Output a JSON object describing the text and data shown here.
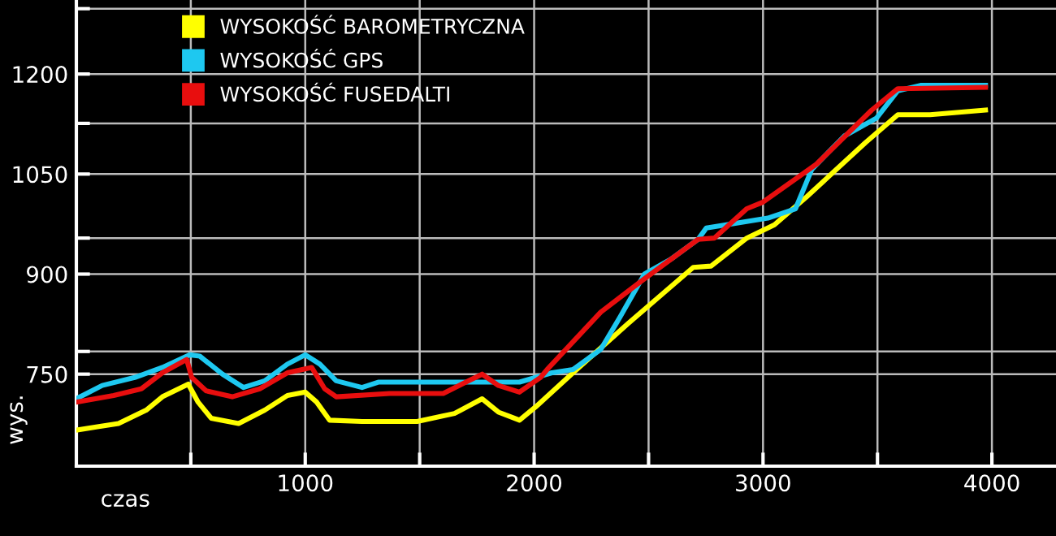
{
  "chart_data": {
    "type": "line",
    "xlabel": "czas",
    "ylabel": "wys.",
    "xlim": [
      0,
      4280
    ],
    "ylim": [
      612,
      1311
    ],
    "xticks": [
      {
        "value": 500,
        "label": null
      },
      1000,
      {
        "value": 1500,
        "label": null
      },
      2000,
      {
        "value": 2500,
        "label": null
      },
      3000,
      {
        "value": 3500,
        "label": null
      },
      4000
    ],
    "yticks": [
      750,
      {
        "value": 784,
        "label": null
      },
      900,
      {
        "value": 954,
        "label": null
      },
      1050,
      {
        "value": 1126,
        "label": null
      },
      1200,
      {
        "value": 1298,
        "label": null
      }
    ],
    "grid": true,
    "legend": "top left",
    "marker": "none",
    "line_style": "solid",
    "series": [
      {
        "name": "WYSOKOŚĆ BAROMETRYCZNA",
        "color": "#ffff00",
        "x": [
          0,
          92,
          184,
          305,
          376,
          447,
          489,
          532,
          589,
          709,
          823,
          922,
          1000,
          1050,
          1106,
          1248,
          1489,
          1652,
          1773,
          1844,
          1936,
          2007,
          2170,
          2411,
          2695,
          2773,
          2929,
          3050,
          3191,
          3447,
          3589,
          3730,
          3972
        ],
        "values": [
          666,
          671,
          676,
          696,
          716,
          728,
          735,
          708,
          684,
          676,
          696,
          718,
          723,
          708,
          681,
          679,
          679,
          691,
          713,
          693,
          681,
          701,
          752,
          826,
          910,
          912,
          954,
          974,
          1016,
          1097,
          1139,
          1139,
          1146
        ]
      },
      {
        "name": "WYSOKOŚĆ GPS",
        "color": "#1ec8f0",
        "x": [
          0,
          113,
          255,
          376,
          496,
          539,
          638,
          730,
          823,
          922,
          1000,
          1064,
          1135,
          1248,
          1319,
          1369,
          1603,
          1936,
          2078,
          2170,
          2291,
          2376,
          2482,
          2596,
          2716,
          2752,
          2879,
          3021,
          3142,
          3213,
          3355,
          3496,
          3589,
          3688,
          3972
        ],
        "values": [
          713,
          733,
          745,
          760,
          779,
          777,
          750,
          730,
          740,
          765,
          779,
          765,
          740,
          730,
          738,
          738,
          738,
          738,
          752,
          757,
          787,
          836,
          900,
          922,
          952,
          969,
          976,
          984,
          998,
          1057,
          1107,
          1134,
          1175,
          1183,
          1183
        ]
      },
      {
        "name": "WYSOKOŚĆ FUSEDALTI",
        "color": "#e80e0e",
        "x": [
          0,
          163,
          284,
          376,
          482,
          504,
          567,
          681,
          801,
          922,
          1028,
          1085,
          1135,
          1369,
          1603,
          1702,
          1773,
          1844,
          1936,
          2028,
          2057,
          2291,
          2482,
          2716,
          2787,
          2929,
          3000,
          3234,
          3475,
          3589,
          3972
        ],
        "values": [
          708,
          718,
          728,
          752,
          772,
          745,
          725,
          716,
          728,
          752,
          760,
          728,
          716,
          721,
          721,
          738,
          750,
          733,
          723,
          745,
          757,
          843,
          893,
          952,
          954,
          998,
          1008,
          1065,
          1146,
          1178,
          1180
        ]
      }
    ]
  }
}
